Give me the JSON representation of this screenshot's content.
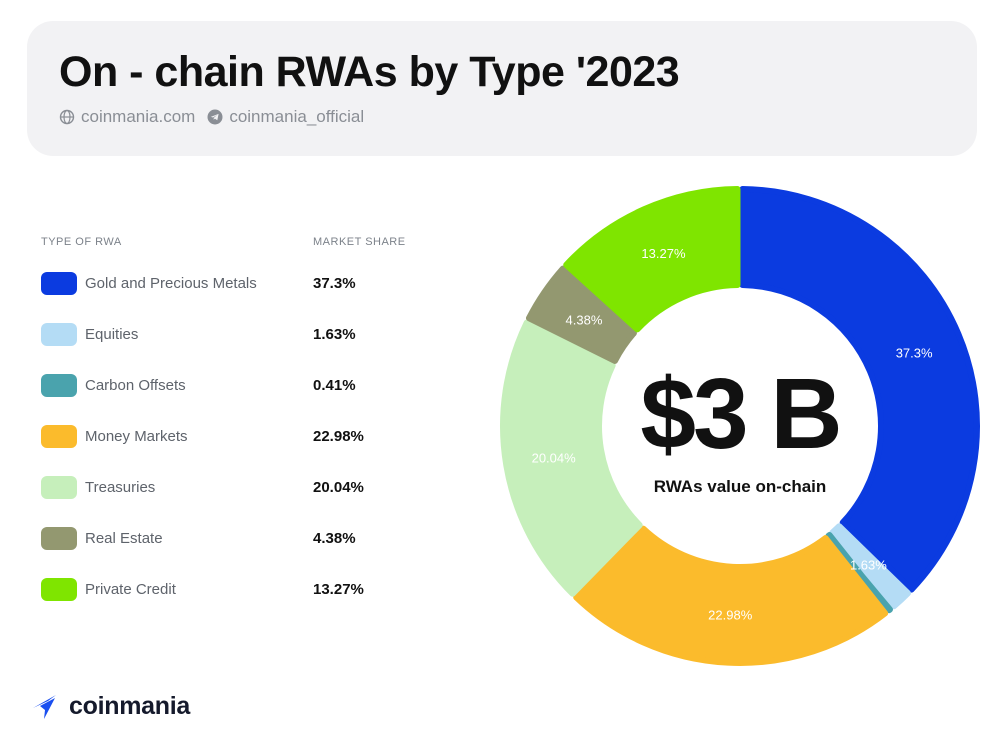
{
  "header": {
    "title": "On - chain RWAs by Type '2023",
    "website": "coinmania.com",
    "telegram": "coinmania_official"
  },
  "legend": {
    "type_header": "TYPE OF RWA",
    "share_header": "MARKET SHARE",
    "items": [
      {
        "label": "Gold and Precious Metals",
        "value": "37.3%",
        "color": "#0b3be0"
      },
      {
        "label": "Equities",
        "value": "1.63%",
        "color": "#b4dcf5"
      },
      {
        "label": "Carbon Offsets",
        "value": "0.41%",
        "color": "#4aa3ad"
      },
      {
        "label": "Money Markets",
        "value": "22.98%",
        "color": "#fbbb2c"
      },
      {
        "label": "Treasuries",
        "value": "20.04%",
        "color": "#c6efbb"
      },
      {
        "label": "Real Estate",
        "value": "4.38%",
        "color": "#939870"
      },
      {
        "label": "Private Credit",
        "value": "13.27%",
        "color": "#7fe500"
      }
    ]
  },
  "center": {
    "total": "$3 B",
    "caption": "RWAs value on-chain"
  },
  "chart_data": {
    "type": "pie",
    "donut": true,
    "categories": [
      "Gold and Precious Metals",
      "Equities",
      "Carbon Offsets",
      "Money Markets",
      "Treasuries",
      "Real Estate",
      "Private Credit"
    ],
    "values": [
      37.3,
      1.63,
      0.41,
      22.98,
      20.04,
      4.38,
      13.27
    ],
    "slice_labels": [
      "37.3%",
      "1.63%",
      "",
      "22.98%",
      "20.04%",
      "4.38%",
      "13.27%"
    ],
    "colors": [
      "#0b3be0",
      "#b4dcf5",
      "#4aa3ad",
      "#fbbb2c",
      "#c6efbb",
      "#939870",
      "#7fe500"
    ],
    "title": "On - chain RWAs by Type '2023"
  },
  "footer": {
    "brand": "coinmania"
  }
}
